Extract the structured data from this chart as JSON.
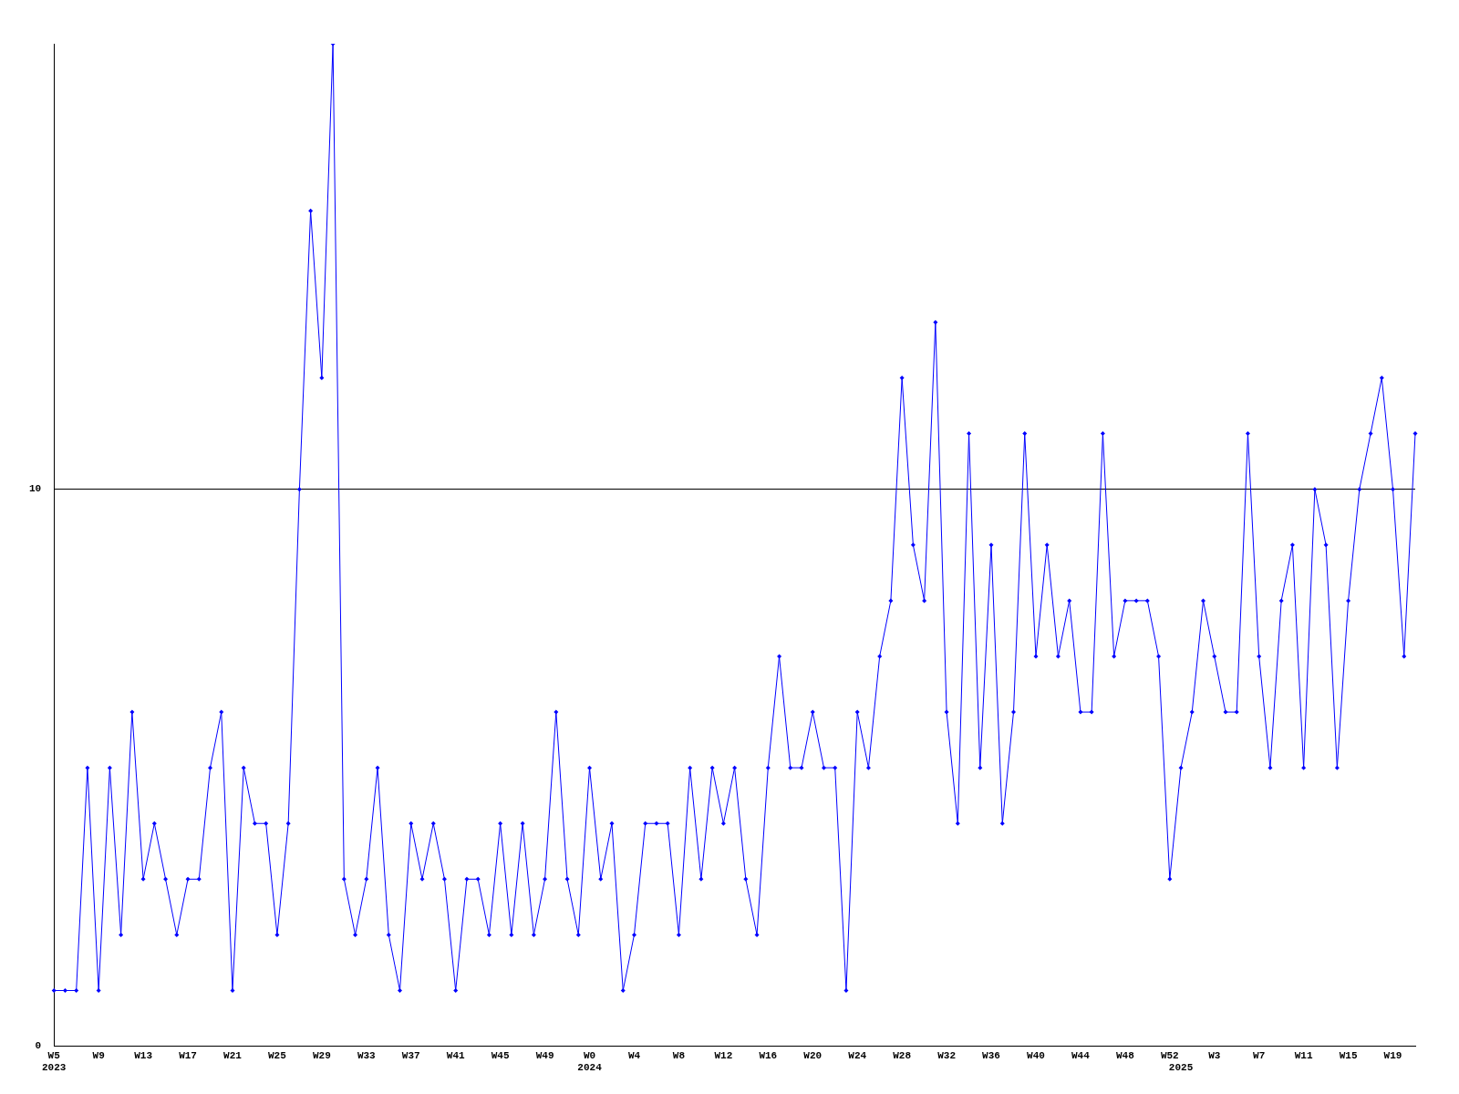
{
  "chart_data": {
    "type": "line",
    "categories": [
      "W5\n2023",
      null,
      null,
      null,
      "W9",
      null,
      null,
      null,
      "W13",
      null,
      null,
      null,
      "W17",
      null,
      null,
      null,
      "W21",
      null,
      null,
      null,
      "W25",
      null,
      null,
      null,
      "W29",
      null,
      null,
      null,
      "W33",
      null,
      null,
      null,
      "W37",
      null,
      null,
      null,
      "W41",
      null,
      null,
      null,
      "W45",
      null,
      null,
      null,
      "W49",
      null,
      null,
      null,
      "W0\n2024",
      null,
      null,
      null,
      "W4",
      null,
      null,
      null,
      "W8",
      null,
      null,
      null,
      "W12",
      null,
      null,
      null,
      "W16",
      null,
      null,
      null,
      "W20",
      null,
      null,
      null,
      "W24",
      null,
      null,
      null,
      "W28",
      null,
      null,
      null,
      "W32",
      null,
      null,
      null,
      "W36",
      null,
      null,
      null,
      "W40",
      null,
      null,
      null,
      "W44",
      null,
      null,
      null,
      "W48",
      null,
      null,
      null,
      "W52",
      "\n2025",
      null,
      null,
      "W3",
      null,
      null,
      null,
      "W7",
      null,
      null,
      null,
      "W11",
      null,
      null,
      null,
      "W15",
      null,
      null,
      null,
      "W19",
      null,
      null
    ],
    "series": [
      {
        "color": "#0000ff",
        "values": [
          1,
          1,
          1,
          5,
          1,
          5,
          2,
          6,
          3,
          4,
          3,
          2,
          3,
          3,
          5,
          6,
          1,
          5,
          4,
          4,
          2,
          4,
          10,
          15,
          12,
          18,
          3,
          2,
          3,
          5,
          2,
          1,
          4,
          3,
          4,
          3,
          1,
          3,
          3,
          2,
          4,
          2,
          4,
          2,
          3,
          6,
          3,
          2,
          5,
          3,
          4,
          1,
          2,
          4,
          4,
          4,
          2,
          5,
          3,
          5,
          4,
          5,
          3,
          2,
          5,
          7,
          5,
          5,
          6,
          5,
          5,
          1,
          6,
          5,
          7,
          8,
          12,
          9,
          8,
          13,
          6,
          4,
          11,
          5,
          9,
          4,
          6,
          11,
          7,
          9,
          7,
          8,
          6,
          6,
          11,
          7,
          8,
          8,
          8,
          7,
          3,
          5,
          6,
          8,
          7,
          6,
          6,
          11,
          7,
          5,
          8,
          9,
          5,
          10,
          9,
          5,
          8,
          10,
          11,
          12,
          10,
          7,
          11
        ]
      }
    ],
    "ylim": [
      0,
      18
    ],
    "yticks": [
      0,
      10
    ],
    "grid": "y",
    "legend": false,
    "marker": "diamond",
    "line_style": "solid"
  }
}
